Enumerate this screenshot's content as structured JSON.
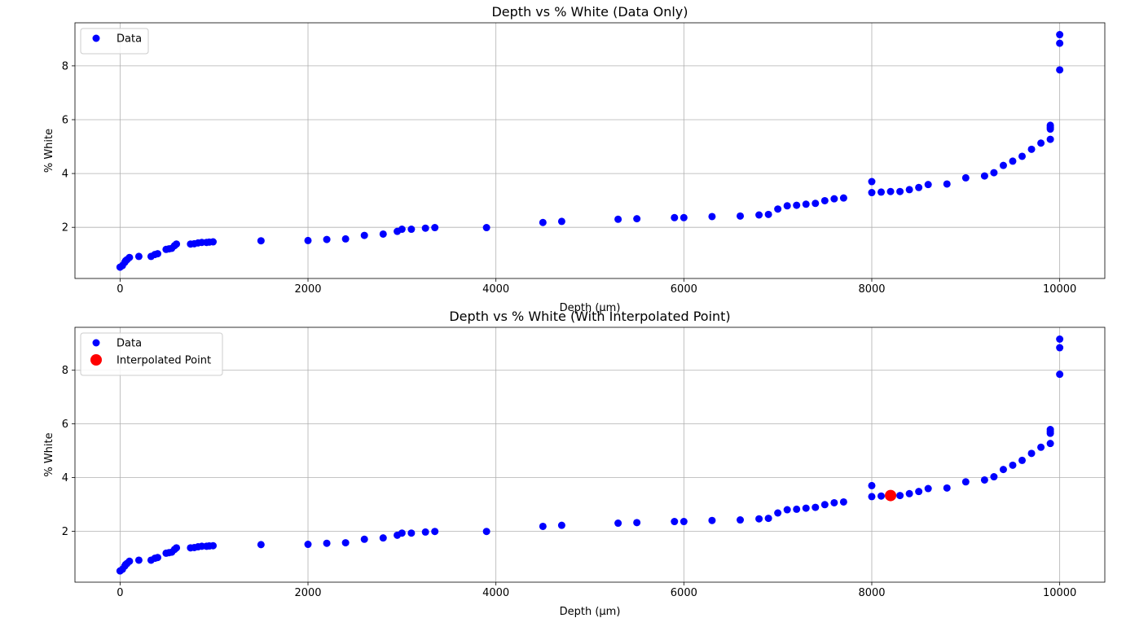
{
  "chart_data": [
    {
      "type": "scatter",
      "title": "Depth vs % White (Data Only)",
      "xlabel": "Depth (μm)",
      "ylabel": "% White",
      "xlim": [
        -480,
        10480
      ],
      "ylim": [
        0.1,
        9.6
      ],
      "xticks": [
        0,
        2000,
        4000,
        6000,
        8000,
        10000
      ],
      "yticks": [
        2,
        4,
        6,
        8
      ],
      "grid": true,
      "legend_position": "upper-left",
      "series": [
        {
          "name": "Data",
          "color": "#0000ff",
          "x": [
            0,
            25,
            50,
            60,
            75,
            100,
            200,
            330,
            370,
            400,
            490,
            520,
            550,
            580,
            600,
            750,
            790,
            830,
            870,
            920,
            950,
            990,
            1500,
            2000,
            2200,
            2400,
            2600,
            2800,
            2950,
            3000,
            3100,
            3250,
            3350,
            3900,
            4500,
            4700,
            5300,
            5500,
            5900,
            6000,
            6300,
            6600,
            6800,
            6900,
            7000,
            7100,
            7200,
            7300,
            7400,
            7500,
            7600,
            7700,
            8000,
            8000,
            8100,
            8200,
            8300,
            8400,
            8500,
            8600,
            8800,
            9000,
            9200,
            9300,
            9400,
            9500,
            9600,
            9700,
            9800,
            9900,
            9900,
            9900,
            9900,
            10000,
            10000,
            10000
          ],
          "y": [
            0.52,
            0.58,
            0.7,
            0.76,
            0.8,
            0.88,
            0.92,
            0.92,
            0.99,
            1.02,
            1.18,
            1.2,
            1.22,
            1.32,
            1.38,
            1.38,
            1.39,
            1.42,
            1.44,
            1.44,
            1.45,
            1.46,
            1.5,
            1.51,
            1.55,
            1.57,
            1.7,
            1.75,
            1.85,
            1.93,
            1.93,
            1.97,
            1.99,
            1.99,
            2.18,
            2.22,
            2.3,
            2.32,
            2.36,
            2.36,
            2.4,
            2.42,
            2.46,
            2.48,
            2.68,
            2.8,
            2.82,
            2.86,
            2.89,
            2.99,
            3.06,
            3.09,
            3.7,
            3.29,
            3.31,
            3.33,
            3.33,
            3.4,
            3.48,
            3.59,
            3.61,
            3.84,
            3.91,
            4.03,
            4.3,
            4.46,
            4.64,
            4.9,
            5.13,
            5.27,
            5.65,
            5.72,
            5.79,
            7.85,
            8.84,
            9.16
          ]
        }
      ]
    },
    {
      "type": "scatter",
      "title": "Depth vs % White (With Interpolated Point)",
      "xlabel": "Depth (μm)",
      "ylabel": "% White",
      "xlim": [
        -480,
        10480
      ],
      "ylim": [
        0.1,
        9.6
      ],
      "xticks": [
        0,
        2000,
        4000,
        6000,
        8000,
        10000
      ],
      "yticks": [
        2,
        4,
        6,
        8
      ],
      "grid": true,
      "legend_position": "upper-left",
      "series": [
        {
          "name": "Data",
          "color": "#0000ff",
          "x": [
            0,
            25,
            50,
            60,
            75,
            100,
            200,
            330,
            370,
            400,
            490,
            520,
            550,
            580,
            600,
            750,
            790,
            830,
            870,
            920,
            950,
            990,
            1500,
            2000,
            2200,
            2400,
            2600,
            2800,
            2950,
            3000,
            3100,
            3250,
            3350,
            3900,
            4500,
            4700,
            5300,
            5500,
            5900,
            6000,
            6300,
            6600,
            6800,
            6900,
            7000,
            7100,
            7200,
            7300,
            7400,
            7500,
            7600,
            7700,
            8000,
            8000,
            8100,
            8200,
            8300,
            8400,
            8500,
            8600,
            8800,
            9000,
            9200,
            9300,
            9400,
            9500,
            9600,
            9700,
            9800,
            9900,
            9900,
            9900,
            9900,
            10000,
            10000,
            10000
          ],
          "y": [
            0.52,
            0.58,
            0.7,
            0.76,
            0.8,
            0.88,
            0.92,
            0.92,
            0.99,
            1.02,
            1.18,
            1.2,
            1.22,
            1.32,
            1.38,
            1.38,
            1.39,
            1.42,
            1.44,
            1.44,
            1.45,
            1.46,
            1.5,
            1.51,
            1.55,
            1.57,
            1.7,
            1.75,
            1.85,
            1.93,
            1.93,
            1.97,
            1.99,
            1.99,
            2.18,
            2.22,
            2.3,
            2.32,
            2.36,
            2.36,
            2.4,
            2.42,
            2.46,
            2.48,
            2.68,
            2.8,
            2.82,
            2.86,
            2.89,
            2.99,
            3.06,
            3.09,
            3.7,
            3.29,
            3.31,
            3.33,
            3.33,
            3.4,
            3.48,
            3.59,
            3.61,
            3.84,
            3.91,
            4.03,
            4.3,
            4.46,
            4.64,
            4.9,
            5.13,
            5.27,
            5.65,
            5.72,
            5.79,
            7.85,
            8.84,
            9.16
          ]
        },
        {
          "name": "Interpolated Point",
          "color": "#ff0000",
          "x": [
            8200
          ],
          "y": [
            3.33
          ]
        }
      ]
    }
  ]
}
